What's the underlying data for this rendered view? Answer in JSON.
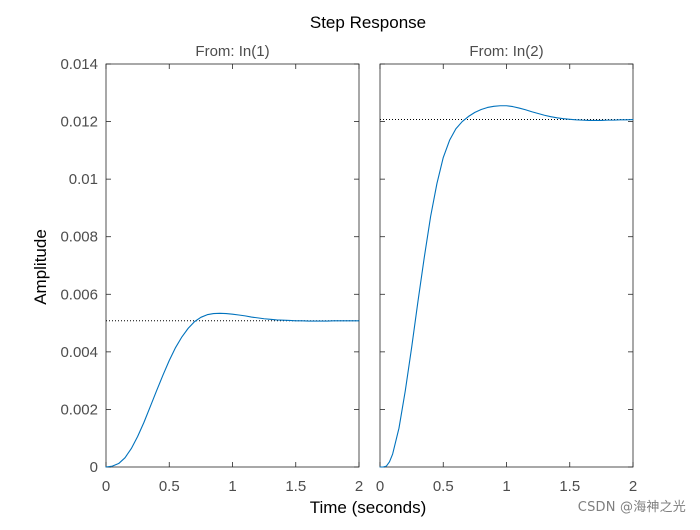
{
  "chart_data": {
    "type": "line",
    "title": "Step Response",
    "xlabel": "Time (seconds)",
    "ylabel": "Amplitude",
    "xlim": [
      0,
      2
    ],
    "ylim": [
      0,
      0.014
    ],
    "x_ticks": [
      0,
      0.5,
      1,
      1.5,
      2
    ],
    "x_tick_labels": [
      "0",
      "0.5",
      "1",
      "1.5",
      "2"
    ],
    "y_ticks": [
      0,
      0.002,
      0.004,
      0.006,
      0.008,
      0.01,
      0.012,
      0.014
    ],
    "y_tick_labels": [
      "0",
      "0.002",
      "0.004",
      "0.006",
      "0.008",
      "0.01",
      "0.012",
      "0.014"
    ],
    "grid": false,
    "line_color": "#0072BD",
    "reference_line_color": "#000000",
    "subplots": [
      {
        "title": "From: In(1)",
        "steady_state": 0.00508,
        "series": [
          {
            "x": [
              0,
              0.05,
              0.1,
              0.15,
              0.2,
              0.25,
              0.3,
              0.35,
              0.4,
              0.45,
              0.5,
              0.55,
              0.6,
              0.65,
              0.7,
              0.75,
              0.8,
              0.85,
              0.9,
              0.95,
              1.0,
              1.05,
              1.1,
              1.15,
              1.2,
              1.25,
              1.3,
              1.35,
              1.4,
              1.45,
              1.5,
              1.55,
              1.6,
              1.65,
              1.7,
              1.75,
              1.8,
              1.85,
              1.9,
              1.95,
              2.0
            ],
            "y": [
              0,
              3e-05,
              0.00012,
              0.00032,
              0.00064,
              0.00106,
              0.00155,
              0.0021,
              0.00265,
              0.00319,
              0.0037,
              0.00415,
              0.00452,
              0.00482,
              0.00505,
              0.0052,
              0.00529,
              0.00533,
              0.00534,
              0.00533,
              0.00531,
              0.00528,
              0.00525,
              0.00521,
              0.00518,
              0.00515,
              0.00513,
              0.00511,
              0.0051,
              0.00509,
              0.00508,
              0.00508,
              0.00507,
              0.00507,
              0.00507,
              0.00507,
              0.00508,
              0.00508,
              0.00508,
              0.00508,
              0.00508
            ]
          }
        ]
      },
      {
        "title": "From: In(2)",
        "steady_state": 0.01207,
        "series": [
          {
            "x": [
              0,
              0.025,
              0.05,
              0.075,
              0.1,
              0.15,
              0.2,
              0.25,
              0.3,
              0.35,
              0.4,
              0.45,
              0.5,
              0.55,
              0.6,
              0.65,
              0.7,
              0.75,
              0.8,
              0.85,
              0.9,
              0.95,
              1.0,
              1.05,
              1.1,
              1.15,
              1.2,
              1.25,
              1.3,
              1.35,
              1.4,
              1.45,
              1.5,
              1.55,
              1.6,
              1.65,
              1.7,
              1.75,
              1.8,
              1.85,
              1.9,
              1.95,
              2.0
            ],
            "y": [
              0,
              0.0,
              3e-05,
              0.00018,
              0.00045,
              0.00135,
              0.00265,
              0.00415,
              0.00575,
              0.00728,
              0.0087,
              0.00985,
              0.01075,
              0.01135,
              0.01175,
              0.012,
              0.01218,
              0.01232,
              0.01242,
              0.01249,
              0.01253,
              0.01255,
              0.01255,
              0.01252,
              0.01247,
              0.01241,
              0.01234,
              0.01228,
              0.01222,
              0.01217,
              0.01213,
              0.0121,
              0.01208,
              0.01206,
              0.01205,
              0.01204,
              0.01204,
              0.01204,
              0.01205,
              0.01205,
              0.01206,
              0.01206,
              0.01207
            ]
          }
        ]
      }
    ]
  },
  "watermark": "CSDN @海神之光"
}
